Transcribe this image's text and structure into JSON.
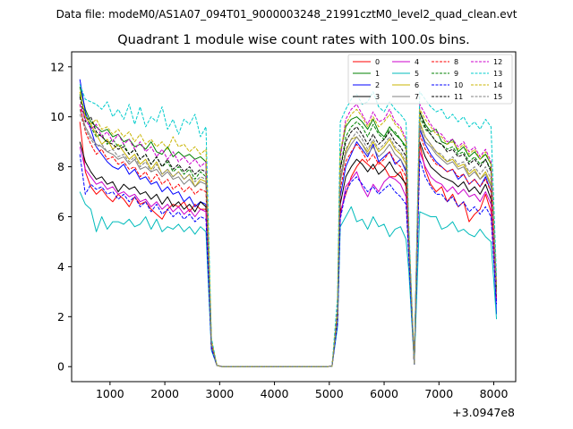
{
  "figure": {
    "suptitle": "Data file: modeM0/AS1A07_094T01_9000003248_21991cztM0_level2_quad_clean.evt"
  },
  "chart_data": {
    "type": "line",
    "title": "Quadrant 1 module wise count rates with 100.0s bins.",
    "xlabel": "",
    "ylabel": "",
    "x_offset_label": "+3.0947e8",
    "xlim": [
      300,
      8400
    ],
    "ylim": [
      -0.6,
      12.6
    ],
    "xticks": [
      1000,
      2000,
      3000,
      4000,
      5000,
      6000,
      7000,
      8000
    ],
    "xtick_labels": [
      "1000",
      "2000",
      "3000",
      "4000",
      "5000",
      "6000",
      "7000",
      "8000"
    ],
    "yticks": [
      0,
      2,
      4,
      6,
      8,
      10,
      12
    ],
    "ytick_labels": [
      "0",
      "2",
      "4",
      "6",
      "8",
      "10",
      "12"
    ],
    "legend": {
      "location": "top-right",
      "ncol": 4
    },
    "x_segments": {
      "segment1": {
        "start": 450,
        "step": 100,
        "count": 24
      },
      "gap_start": [
        2850,
        2950,
        3050
      ],
      "gap": {
        "start": 3150,
        "step": 100,
        "count": 19
      },
      "segment2": {
        "start": 5150,
        "step": 100,
        "count": 13
      },
      "trough": [
        6450,
        6550
      ],
      "segment3": {
        "start": 6650,
        "step": 100,
        "count": 14
      }
    },
    "series": [
      {
        "name": "0",
        "color": "#ff0000",
        "dash": "solid",
        "seg1": [
          9.8,
          7.8,
          7.2,
          6.9,
          7.1,
          6.8,
          6.6,
          6.9,
          6.7,
          6.4,
          6.8,
          6.5,
          6.6,
          6.3,
          6.1,
          5.9,
          6.3,
          6.5,
          6.4,
          6.6,
          6.2,
          6.5,
          6.3,
          6.3
        ],
        "seg2": [
          6.2,
          6.9,
          7.6,
          8.0,
          8.3,
          8.1,
          7.9,
          8.2,
          8.0,
          7.6,
          7.6,
          7.8,
          7.2
        ],
        "seg3": [
          8.9,
          7.9,
          7.3,
          7.0,
          7.2,
          6.6,
          6.9,
          6.4,
          6.6,
          5.8,
          6.1,
          6.3,
          6.9,
          6.2
        ],
        "gap_end": [
          1.8,
          2.7
        ]
      },
      {
        "name": "1",
        "color": "#008000",
        "dash": "solid",
        "seg1": [
          11.2,
          10.3,
          9.8,
          9.6,
          9.4,
          9.5,
          9.2,
          9.3,
          9.0,
          9.1,
          8.8,
          8.9,
          8.7,
          9.0,
          8.6,
          8.5,
          8.8,
          8.4,
          8.6,
          8.4,
          8.5,
          8.3,
          8.4,
          8.2
        ],
        "seg2": [
          8.5,
          9.6,
          9.9,
          10.0,
          9.8,
          9.5,
          9.9,
          9.4,
          9.2,
          9.6,
          9.3,
          9.1,
          8.8
        ],
        "seg3": [
          10.2,
          9.7,
          9.4,
          9.5,
          9.0,
          8.9,
          9.1,
          8.6,
          8.8,
          8.4,
          8.6,
          8.3,
          8.5,
          8.1
        ],
        "gap_end": [
          2.3,
          3.2
        ]
      },
      {
        "name": "2",
        "color": "#0000ff",
        "dash": "solid",
        "seg1": [
          11.5,
          10.2,
          9.5,
          8.8,
          8.5,
          8.2,
          8.0,
          7.9,
          8.1,
          7.7,
          7.9,
          7.5,
          7.6,
          7.3,
          7.4,
          7.0,
          7.2,
          6.9,
          7.0,
          6.6,
          6.8,
          6.4,
          6.6,
          6.5
        ],
        "seg2": [
          6.8,
          8.0,
          8.5,
          9.0,
          8.7,
          8.4,
          8.9,
          8.2,
          8.4,
          8.6,
          8.1,
          8.3,
          7.8
        ],
        "seg3": [
          9.5,
          8.9,
          8.5,
          8.2,
          8.0,
          7.8,
          7.9,
          7.5,
          7.7,
          7.3,
          7.5,
          7.2,
          7.6,
          7.0
        ],
        "gap_end": [
          2.0,
          2.1
        ]
      },
      {
        "name": "3",
        "color": "#000000",
        "dash": "solid",
        "seg1": [
          9.0,
          8.2,
          7.8,
          7.5,
          7.6,
          7.3,
          7.4,
          7.0,
          7.3,
          7.1,
          7.2,
          6.9,
          7.0,
          6.7,
          6.9,
          6.5,
          6.8,
          6.4,
          6.6,
          6.3,
          6.5,
          6.2,
          6.6,
          6.4
        ],
        "seg2": [
          6.5,
          7.6,
          8.0,
          8.3,
          8.1,
          7.8,
          8.1,
          7.7,
          7.9,
          8.2,
          7.8,
          7.6,
          7.3
        ],
        "seg3": [
          9.0,
          8.4,
          8.0,
          7.8,
          7.6,
          7.5,
          7.4,
          7.2,
          7.4,
          7.0,
          7.2,
          6.9,
          7.3,
          6.7
        ],
        "gap_end": [
          1.9,
          2.9
        ]
      },
      {
        "name": "4",
        "color": "#cc00cc",
        "dash": "solid",
        "seg1": [
          8.8,
          7.9,
          7.6,
          7.3,
          7.4,
          7.1,
          7.2,
          6.9,
          7.0,
          6.8,
          6.9,
          6.6,
          6.7,
          6.4,
          6.6,
          6.3,
          6.5,
          6.2,
          6.4,
          6.1,
          6.3,
          6.0,
          6.3,
          6.2
        ],
        "seg2": [
          6.0,
          7.2,
          7.5,
          7.8,
          7.2,
          6.8,
          7.3,
          7.0,
          7.4,
          7.6,
          7.5,
          7.3,
          6.8
        ],
        "seg3": [
          8.6,
          8.0,
          7.6,
          7.4,
          7.3,
          7.0,
          7.2,
          6.9,
          7.1,
          6.8,
          6.9,
          6.6,
          7.0,
          6.5
        ],
        "gap_end": [
          1.8,
          2.6
        ]
      },
      {
        "name": "5",
        "color": "#00bbbb",
        "dash": "solid",
        "seg1": [
          7.0,
          6.5,
          6.3,
          5.4,
          6.0,
          5.5,
          5.8,
          5.8,
          5.7,
          5.9,
          5.6,
          5.7,
          6.0,
          5.5,
          5.9,
          5.4,
          5.6,
          5.5,
          5.7,
          5.4,
          5.6,
          5.3,
          5.6,
          5.4
        ],
        "seg2": [
          5.6,
          6.0,
          6.4,
          5.8,
          5.9,
          5.5,
          6.0,
          5.6,
          5.7,
          5.2,
          5.5,
          5.6,
          5.1
        ],
        "seg3": [
          6.2,
          6.1,
          6.0,
          6.0,
          5.5,
          5.6,
          5.8,
          5.4,
          5.5,
          5.3,
          5.2,
          5.5,
          5.2,
          5.0
        ],
        "gap_end": [
          1.6,
          1.9
        ]
      },
      {
        "name": "6",
        "color": "#c8b400",
        "dash": "solid",
        "seg1": [
          11.0,
          10.0,
          9.7,
          9.3,
          8.9,
          9.1,
          8.7,
          8.9,
          8.6,
          8.3,
          8.5,
          8.1,
          8.3,
          7.9,
          8.2,
          7.7,
          7.9,
          7.6,
          7.8,
          7.5,
          7.7,
          7.2,
          7.5,
          7.4
        ],
        "seg2": [
          7.5,
          8.6,
          9.1,
          9.2,
          8.9,
          8.6,
          9.0,
          8.6,
          8.8,
          9.1,
          8.7,
          8.5,
          8.1
        ],
        "seg3": [
          9.8,
          9.2,
          8.9,
          8.6,
          8.4,
          8.2,
          8.3,
          8.0,
          8.1,
          7.7,
          7.9,
          7.5,
          7.8,
          7.3
        ],
        "gap_end": [
          2.1,
          3.0
        ]
      },
      {
        "name": "7",
        "color": "#808080",
        "dash": "solid",
        "seg1": [
          10.3,
          9.6,
          9.2,
          8.9,
          8.8,
          8.6,
          8.5,
          8.3,
          8.4,
          8.1,
          8.3,
          7.9,
          8.0,
          7.8,
          7.9,
          7.6,
          7.8,
          7.5,
          7.6,
          7.3,
          7.5,
          7.2,
          7.4,
          7.3
        ],
        "seg2": [
          7.4,
          8.5,
          8.9,
          9.2,
          8.9,
          8.5,
          8.8,
          8.4,
          8.6,
          8.9,
          8.5,
          8.3,
          7.9
        ],
        "seg3": [
          9.6,
          9.0,
          8.8,
          8.5,
          8.3,
          8.1,
          8.2,
          7.9,
          8.0,
          7.6,
          7.8,
          7.5,
          7.7,
          7.2
        ],
        "gap_end": [
          2.0,
          2.9
        ]
      },
      {
        "name": "8",
        "color": "#ff0000",
        "dash": "dashed",
        "seg1": [
          10.5,
          9.4,
          8.9,
          8.5,
          8.7,
          8.3,
          8.4,
          8.1,
          8.2,
          7.9,
          8.0,
          7.6,
          7.8,
          7.4,
          7.7,
          7.3,
          7.5,
          7.1,
          7.3,
          7.0,
          7.2,
          6.9,
          7.1,
          7.0
        ],
        "seg2": [
          7.1,
          8.2,
          8.6,
          8.9,
          8.6,
          8.2,
          8.5,
          8.1,
          8.3,
          8.6,
          8.2,
          8.0,
          7.6
        ],
        "seg3": [
          9.3,
          8.7,
          8.4,
          8.1,
          8.0,
          7.8,
          7.9,
          7.6,
          7.7,
          7.3,
          7.5,
          7.2,
          7.5,
          7.0
        ],
        "gap_end": [
          1.9,
          2.8
        ]
      },
      {
        "name": "9",
        "color": "#008000",
        "dash": "dashed",
        "seg1": [
          10.9,
          10.1,
          9.6,
          9.2,
          9.3,
          8.9,
          9.1,
          8.8,
          8.9,
          8.5,
          8.7,
          8.3,
          8.5,
          8.1,
          8.4,
          8.0,
          8.2,
          7.8,
          8.0,
          7.7,
          7.9,
          7.5,
          7.8,
          7.6
        ],
        "seg2": [
          7.9,
          9.2,
          9.6,
          9.8,
          9.6,
          9.2,
          9.7,
          9.3,
          9.1,
          9.5,
          9.4,
          9.1,
          8.7
        ],
        "seg3": [
          10.0,
          9.5,
          9.3,
          9.0,
          8.9,
          8.7,
          8.8,
          8.5,
          8.6,
          8.2,
          8.4,
          8.1,
          8.3,
          7.9
        ],
        "gap_end": [
          2.2,
          3.1
        ]
      },
      {
        "name": "10",
        "color": "#0000ff",
        "dash": "dashed",
        "seg1": [
          8.5,
          6.9,
          7.3,
          7.1,
          7.2,
          6.9,
          7.0,
          6.7,
          6.9,
          6.6,
          6.8,
          6.4,
          6.6,
          6.2,
          6.5,
          6.1,
          6.3,
          6.0,
          6.2,
          5.9,
          6.1,
          5.8,
          6.0,
          5.9
        ],
        "seg2": [
          5.9,
          7.0,
          7.4,
          7.6,
          7.3,
          7.0,
          7.2,
          6.9,
          7.1,
          7.3,
          7.0,
          6.8,
          6.5
        ],
        "seg3": [
          8.3,
          7.6,
          7.2,
          6.9,
          6.9,
          6.6,
          6.8,
          6.4,
          6.6,
          6.2,
          6.4,
          6.1,
          6.4,
          6.0
        ],
        "gap_end": [
          1.7,
          2.5
        ]
      },
      {
        "name": "11",
        "color": "#000000",
        "dash": "dashed",
        "seg1": [
          10.8,
          9.8,
          10.0,
          9.4,
          9.2,
          9.0,
          8.9,
          8.7,
          8.8,
          8.5,
          8.7,
          8.3,
          8.5,
          8.1,
          8.4,
          8.0,
          8.3,
          7.9,
          8.1,
          7.8,
          8.0,
          7.7,
          7.9,
          7.8
        ],
        "seg2": [
          7.9,
          9.0,
          9.4,
          9.6,
          9.3,
          8.9,
          9.3,
          8.9,
          9.1,
          9.4,
          9.0,
          8.8,
          8.4
        ],
        "seg3": [
          10.2,
          9.6,
          9.3,
          9.0,
          8.9,
          8.6,
          8.7,
          8.4,
          8.5,
          8.1,
          8.3,
          8.0,
          8.3,
          7.8
        ],
        "gap_end": [
          2.1,
          3.1
        ]
      },
      {
        "name": "12",
        "color": "#cc00cc",
        "dash": "dashed",
        "seg1": [
          10.5,
          9.9,
          9.5,
          9.7,
          9.2,
          9.4,
          9.0,
          9.3,
          8.9,
          9.1,
          8.7,
          9.0,
          8.6,
          8.8,
          8.4,
          8.7,
          8.3,
          8.6,
          8.2,
          8.4,
          8.1,
          8.3,
          8.0,
          8.2
        ],
        "seg2": [
          8.3,
          9.9,
          10.3,
          10.5,
          10.1,
          9.7,
          10.2,
          9.8,
          9.9,
          10.3,
          9.8,
          9.6,
          9.1
        ],
        "seg3": [
          10.5,
          10.1,
          9.7,
          9.4,
          9.3,
          9.0,
          9.1,
          8.8,
          9.0,
          8.6,
          8.8,
          8.4,
          8.7,
          8.2
        ],
        "gap_end": [
          2.4,
          3.3
        ]
      },
      {
        "name": "13",
        "color": "#00cccc",
        "dash": "dashed",
        "seg1": [
          11.3,
          10.7,
          10.6,
          10.5,
          10.3,
          10.6,
          10.0,
          10.3,
          9.9,
          10.5,
          9.7,
          10.4,
          9.6,
          10.0,
          9.8,
          10.4,
          9.5,
          9.9,
          9.3,
          9.9,
          9.7,
          10.1,
          9.2,
          9.6
        ],
        "seg2": [
          9.8,
          10.3,
          10.7,
          10.9,
          10.5,
          10.6,
          11.0,
          10.4,
          10.2,
          10.6,
          10.3,
          10.1,
          9.8
        ],
        "seg3": [
          11.0,
          10.7,
          10.4,
          10.2,
          10.3,
          9.9,
          10.1,
          9.8,
          10.0,
          9.6,
          9.8,
          9.5,
          9.9,
          9.6
        ],
        "gap_end": [
          2.8,
          3.6
        ]
      },
      {
        "name": "14",
        "color": "#c8b400",
        "dash": "dashed",
        "seg1": [
          11.0,
          10.0,
          9.7,
          9.9,
          9.5,
          9.6,
          9.3,
          9.5,
          9.2,
          9.4,
          9.0,
          9.3,
          8.9,
          9.1,
          8.8,
          9.0,
          8.7,
          9.2,
          8.8,
          8.9,
          8.6,
          8.8,
          8.5,
          8.7
        ],
        "seg2": [
          8.6,
          9.7,
          10.1,
          10.3,
          10.0,
          9.6,
          10.0,
          9.6,
          9.8,
          10.1,
          9.7,
          9.5,
          9.0
        ],
        "seg3": [
          10.3,
          9.9,
          9.6,
          9.3,
          9.2,
          8.9,
          9.0,
          8.7,
          8.9,
          8.5,
          8.7,
          8.3,
          8.6,
          8.1
        ],
        "gap_end": [
          2.3,
          3.2
        ]
      },
      {
        "name": "15",
        "color": "#808080",
        "dash": "dashed",
        "seg1": [
          10.1,
          9.5,
          9.1,
          8.8,
          8.9,
          8.6,
          8.7,
          8.4,
          8.5,
          8.2,
          8.4,
          8.0,
          8.2,
          7.8,
          8.1,
          7.7,
          7.9,
          7.6,
          7.8,
          7.5,
          7.7,
          7.4,
          7.6,
          7.5
        ],
        "seg2": [
          7.6,
          8.7,
          9.1,
          9.4,
          9.1,
          8.7,
          9.1,
          8.7,
          8.9,
          9.2,
          8.8,
          8.6,
          8.2
        ],
        "seg3": [
          9.7,
          9.2,
          8.9,
          8.6,
          8.5,
          8.2,
          8.4,
          8.1,
          8.2,
          7.8,
          8.0,
          7.7,
          8.0,
          7.5
        ],
        "gap_end": [
          2.0,
          2.9
        ]
      }
    ]
  }
}
